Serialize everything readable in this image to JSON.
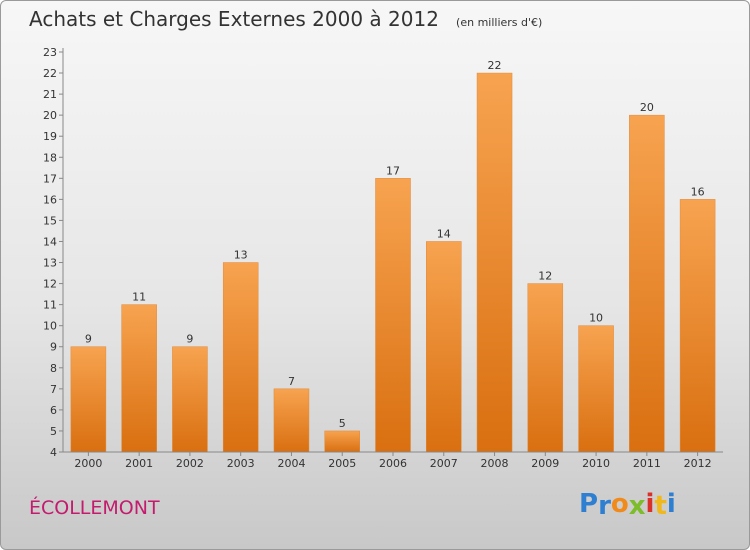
{
  "chart_data": {
    "type": "bar",
    "title": "Achats et Charges Externes 2000 à 2012",
    "subtitle": "(en milliers d'€)",
    "categories": [
      "2000",
      "2001",
      "2002",
      "2003",
      "2004",
      "2005",
      "2006",
      "2007",
      "2008",
      "2009",
      "2010",
      "2011",
      "2012"
    ],
    "values": [
      9,
      11,
      9,
      13,
      7,
      5,
      17,
      14,
      22,
      12,
      10,
      20,
      16
    ],
    "ylim": [
      4,
      23
    ],
    "yticks": [
      4,
      5,
      6,
      7,
      8,
      9,
      10,
      11,
      12,
      13,
      14,
      15,
      16,
      17,
      18,
      19,
      20,
      21,
      22,
      23
    ],
    "grid": false,
    "bar_color_top": "#f7a350",
    "bar_color_bottom": "#d96f10"
  },
  "footer": {
    "commune": "ÉCOLLEMONT",
    "logo_letters": [
      "P",
      "r",
      "o",
      "x",
      "i",
      "t",
      "i"
    ],
    "logo_colors": [
      "#2e7fd1",
      "#2e7fd1",
      "#f08a1a",
      "#7dbd2b",
      "#d9302a",
      "#f0b81a",
      "#2e7fd1"
    ]
  }
}
